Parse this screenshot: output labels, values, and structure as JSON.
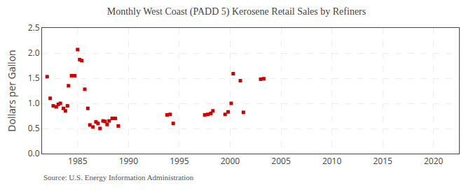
{
  "chart_data": {
    "type": "scatter",
    "title": "Monthly West Coast (PADD 5) Kerosene Retail Sales by Refiners",
    "ylabel": "Dollars per Gallon",
    "annotations": [
      "Source: U.S. Energy Information Administration"
    ],
    "color": "#cc0000",
    "marker": "square",
    "grid": true,
    "xlim": [
      1981.5,
      2022.5
    ],
    "ylim": [
      0.0,
      2.5
    ],
    "xticks": [
      1985,
      1990,
      1995,
      2000,
      2005,
      2010,
      2015,
      2020
    ],
    "yticks": [
      {
        "value": 0.0,
        "label": "0.0"
      },
      0.5,
      {
        "value": 1.0,
        "label": "1.0"
      },
      1.5,
      {
        "value": 2.0,
        "label": "2.0"
      },
      2.5
    ],
    "x": [
      1982.0,
      1982.3,
      1982.6,
      1982.9,
      1983.1,
      1983.3,
      1983.6,
      1983.8,
      1984.0,
      1984.1,
      1984.4,
      1984.7,
      1985.0,
      1985.2,
      1985.4,
      1985.7,
      1986.0,
      1986.2,
      1986.5,
      1986.8,
      1987.0,
      1987.2,
      1987.5,
      1987.7,
      1987.9,
      1988.1,
      1988.4,
      1988.7,
      1989.0,
      1993.8,
      1994.1,
      1994.4,
      1997.5,
      1997.8,
      1998.1,
      1998.3,
      1999.5,
      1999.8,
      2000.1,
      2000.3,
      2001.0,
      2001.3,
      2003.0,
      2003.3
    ],
    "values": [
      1.53,
      1.1,
      0.95,
      0.93,
      0.98,
      1.0,
      0.9,
      0.85,
      0.95,
      1.35,
      1.55,
      1.55,
      2.07,
      1.87,
      1.85,
      1.28,
      0.9,
      0.57,
      0.53,
      0.63,
      0.6,
      0.5,
      0.65,
      0.64,
      0.58,
      0.65,
      0.7,
      0.7,
      0.55,
      0.77,
      0.78,
      0.6,
      0.77,
      0.78,
      0.8,
      0.85,
      0.78,
      0.83,
      1.0,
      1.59,
      1.45,
      0.82,
      1.48,
      1.49
    ]
  }
}
